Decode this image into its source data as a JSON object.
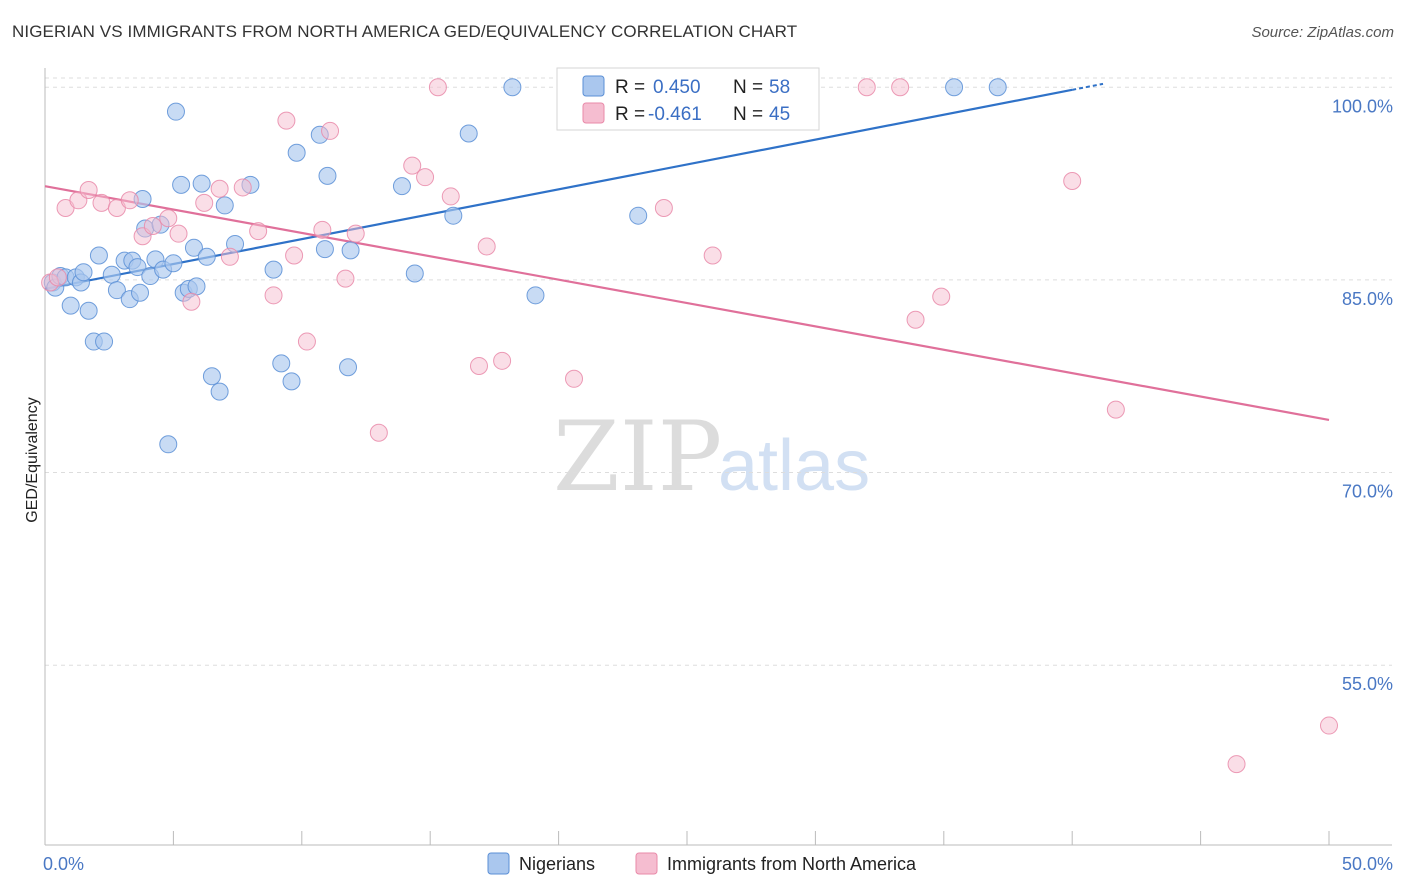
{
  "title": "NIGERIAN VS IMMIGRANTS FROM NORTH AMERICA GED/EQUIVALENCY CORRELATION CHART",
  "source": "Source: ZipAtlas.com",
  "watermark": {
    "zip": "ZIP",
    "atlas": "atlas"
  },
  "colors": {
    "blue": "#5b8fd6",
    "blue_fill": "#aac7ee",
    "blue_line": "#2f72c8",
    "pink": "#e98aa9",
    "pink_fill": "#f5bdd0",
    "pink_line": "#e0709a",
    "grid": "#dddddd",
    "axis_label": "#4a78c4"
  },
  "legend": {
    "rows": [
      {
        "r_label": "R =",
        "r_value": "0.450",
        "n_label": "N =",
        "n_value": "58"
      },
      {
        "r_label": "R =",
        "r_value": "-0.461",
        "n_label": "N =",
        "n_value": "45"
      }
    ]
  },
  "bottom_legend": {
    "items": [
      {
        "label": "Nigerians"
      },
      {
        "label": "Immigrants from North America"
      }
    ]
  },
  "chart_data": {
    "type": "scatter",
    "title": "NIGERIAN VS IMMIGRANTS FROM NORTH AMERICA GED/EQUIVALENCY CORRELATION CHART",
    "xlabel": "",
    "ylabel": "GED/Equivalency",
    "xlim": [
      0,
      50
    ],
    "ylim": [
      41,
      101.5
    ],
    "x_tick_labels": [
      "0.0%",
      "50.0%"
    ],
    "y_ticks": [
      55,
      70,
      85,
      100
    ],
    "y_tick_labels": [
      "55.0%",
      "70.0%",
      "85.0%",
      "100.0%"
    ],
    "legend_position": "top-center",
    "series": [
      {
        "name": "Nigerians",
        "r": 0.45,
        "n": 58,
        "trend": {
          "x": [
            0,
            40
          ],
          "y": [
            84.3,
            99.8
          ]
        },
        "points": [
          [
            0.3,
            84.8
          ],
          [
            0.4,
            84.4
          ],
          [
            0.6,
            85.3
          ],
          [
            0.8,
            85.2
          ],
          [
            1.0,
            83.0
          ],
          [
            1.2,
            85.2
          ],
          [
            1.4,
            84.8
          ],
          [
            1.5,
            85.6
          ],
          [
            1.7,
            82.6
          ],
          [
            1.9,
            80.2
          ],
          [
            2.1,
            86.9
          ],
          [
            2.3,
            80.2
          ],
          [
            2.6,
            85.4
          ],
          [
            2.8,
            84.2
          ],
          [
            3.1,
            86.5
          ],
          [
            3.3,
            83.5
          ],
          [
            3.4,
            86.5
          ],
          [
            3.6,
            86.0
          ],
          [
            3.7,
            84.0
          ],
          [
            3.8,
            91.3
          ],
          [
            3.9,
            89.0
          ],
          [
            4.1,
            85.3
          ],
          [
            4.3,
            86.6
          ],
          [
            4.5,
            89.3
          ],
          [
            4.6,
            85.8
          ],
          [
            4.8,
            72.2
          ],
          [
            5.0,
            86.3
          ],
          [
            5.1,
            98.1
          ],
          [
            5.3,
            92.4
          ],
          [
            5.4,
            84.0
          ],
          [
            5.6,
            84.3
          ],
          [
            5.8,
            87.5
          ],
          [
            5.9,
            84.5
          ],
          [
            6.1,
            92.5
          ],
          [
            6.3,
            86.8
          ],
          [
            6.5,
            77.5
          ],
          [
            6.8,
            76.3
          ],
          [
            7.0,
            90.8
          ],
          [
            7.4,
            87.8
          ],
          [
            8.0,
            92.4
          ],
          [
            8.9,
            85.8
          ],
          [
            9.2,
            78.5
          ],
          [
            9.6,
            77.1
          ],
          [
            9.8,
            94.9
          ],
          [
            10.7,
            96.3
          ],
          [
            10.9,
            87.4
          ],
          [
            11.0,
            93.1
          ],
          [
            11.9,
            87.3
          ],
          [
            11.8,
            78.2
          ],
          [
            13.9,
            92.3
          ],
          [
            14.4,
            85.5
          ],
          [
            15.9,
            90.0
          ],
          [
            16.5,
            96.4
          ],
          [
            18.2,
            100.0
          ],
          [
            19.1,
            83.8
          ],
          [
            23.1,
            90.0
          ],
          [
            35.4,
            100.0
          ],
          [
            37.1,
            100.0
          ]
        ]
      },
      {
        "name": "Immigrants from North America",
        "r": -0.461,
        "n": 45,
        "trend": {
          "x": [
            0,
            50
          ],
          "y": [
            92.3,
            74.1
          ]
        },
        "points": [
          [
            0.2,
            84.8
          ],
          [
            0.5,
            85.2
          ],
          [
            0.8,
            90.6
          ],
          [
            1.3,
            91.2
          ],
          [
            1.7,
            92.0
          ],
          [
            2.2,
            91.0
          ],
          [
            2.8,
            90.6
          ],
          [
            3.3,
            91.2
          ],
          [
            3.8,
            88.4
          ],
          [
            4.2,
            89.2
          ],
          [
            4.8,
            89.8
          ],
          [
            5.2,
            88.6
          ],
          [
            5.7,
            83.3
          ],
          [
            6.2,
            91.0
          ],
          [
            6.8,
            92.1
          ],
          [
            7.2,
            86.8
          ],
          [
            7.7,
            92.2
          ],
          [
            8.3,
            88.8
          ],
          [
            8.9,
            83.8
          ],
          [
            9.4,
            97.4
          ],
          [
            9.7,
            86.9
          ],
          [
            10.2,
            80.2
          ],
          [
            10.8,
            88.9
          ],
          [
            11.1,
            96.6
          ],
          [
            11.7,
            85.1
          ],
          [
            12.1,
            88.6
          ],
          [
            13.0,
            73.1
          ],
          [
            14.3,
            93.9
          ],
          [
            14.8,
            93.0
          ],
          [
            15.3,
            100.0
          ],
          [
            15.8,
            91.5
          ],
          [
            16.9,
            78.3
          ],
          [
            17.2,
            87.6
          ],
          [
            17.8,
            78.7
          ],
          [
            20.6,
            77.3
          ],
          [
            24.1,
            90.6
          ],
          [
            26.0,
            86.9
          ],
          [
            32.0,
            100.0
          ],
          [
            33.3,
            100.0
          ],
          [
            33.9,
            81.9
          ],
          [
            34.9,
            83.7
          ],
          [
            40.0,
            92.7
          ],
          [
            41.7,
            74.9
          ],
          [
            46.4,
            47.3
          ],
          [
            50.0,
            50.3
          ]
        ]
      }
    ]
  }
}
